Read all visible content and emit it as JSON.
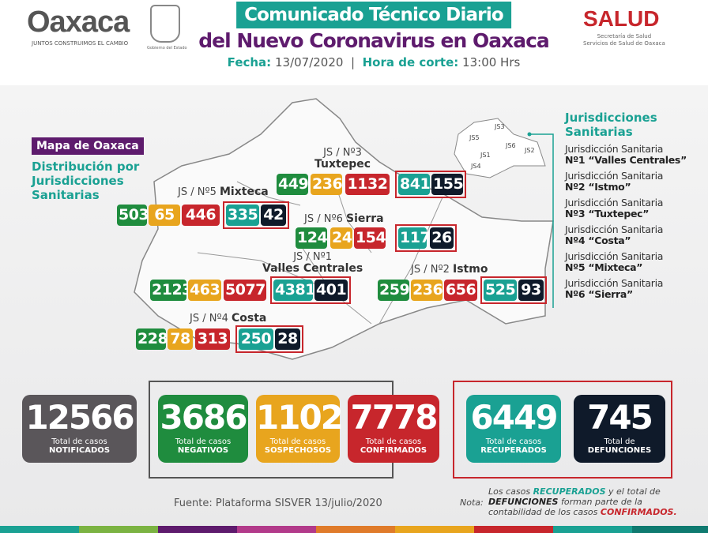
{
  "header": {
    "logo": "Oaxaca",
    "logo_tagline": "JUNTOS CONSTRUIMOS EL CAMBIO",
    "seal_caption": "Gobierno del Estado",
    "title_line1": "Comunicado Técnico Diario",
    "title_line2": "del Nuevo Coronavirus en Oaxaca",
    "fecha_label": "Fecha:",
    "fecha": "13/07/2020",
    "separator": "|",
    "hora_label": "Hora de corte:",
    "hora": "13:00 Hrs",
    "salud": "SALUD",
    "salud_sub1": "Secretaría de Salud",
    "salud_sub2": "Servicios de Salud de Oaxaca"
  },
  "map": {
    "title": "Mapa de Oaxaca",
    "subtitle": [
      "Distribución por",
      "Jurisdicciones",
      "Sanitarias"
    ],
    "mini_labels": [
      "JS3",
      "JS5",
      "JS6",
      "JS1",
      "JS2",
      "JS4"
    ],
    "clusters": [
      {
        "label": "JS / Nº5",
        "name": "Mixteca",
        "values": [
          503,
          65,
          446,
          335,
          42
        ]
      },
      {
        "label": "JS / Nº3",
        "name": "Tuxtepec",
        "values": [
          449,
          236,
          1132,
          841,
          155
        ]
      },
      {
        "label": "JS / Nº6",
        "name": "Sierra",
        "values": [
          124,
          24,
          154,
          117,
          26
        ]
      },
      {
        "label": "JS / Nº1",
        "name": "Valles Centrales",
        "values": [
          2123,
          463,
          5077,
          4381,
          401
        ]
      },
      {
        "label": "JS / Nº2",
        "name": "Istmo",
        "values": [
          259,
          236,
          656,
          525,
          93
        ]
      },
      {
        "label": "JS / Nº4",
        "name": "Costa",
        "values": [
          228,
          78,
          313,
          250,
          28
        ]
      }
    ]
  },
  "legend": {
    "title": [
      "Jurisdicciones",
      "Sanitarias"
    ],
    "items": [
      {
        "line1": "Jurisdicción Sanitaria",
        "line2": "Nº1 “Valles Centrales”"
      },
      {
        "line1": "Jurisdicción Sanitaria",
        "line2": "Nº2 “Istmo”"
      },
      {
        "line1": "Jurisdicción Sanitaria",
        "line2": "Nº3 “Tuxtepec”"
      },
      {
        "line1": "Jurisdicción Sanitaria",
        "line2": "Nº4 “Costa”"
      },
      {
        "line1": "Jurisdicción Sanitaria",
        "line2": "Nº5 “Mixteca”"
      },
      {
        "line1": "Jurisdicción Sanitaria",
        "line2": "Nº6 “Sierra”"
      }
    ]
  },
  "totals": [
    {
      "value": "12566",
      "l1": "Total de casos",
      "l2": "NOTIFICADOS",
      "color": "#5a565a"
    },
    {
      "value": "3686",
      "l1": "Total de casos",
      "l2": "NEGATIVOS",
      "color": "#1f8c3e"
    },
    {
      "value": "1102",
      "l1": "Total de casos",
      "l2": "SOSPECHOSOS",
      "color": "#e8a51e"
    },
    {
      "value": "7778",
      "l1": "Total de casos",
      "l2": "CONFIRMADOS",
      "color": "#c7262c"
    },
    {
      "value": "6449",
      "l1": "Total de casos",
      "l2": "RECUPERADOS",
      "color": "#1aa193"
    },
    {
      "value": "745",
      "l1": "Total de",
      "l2": "DEFUNCIONES",
      "color": "#0f1a2a"
    }
  ],
  "footer": {
    "source": "Fuente: Plataforma SISVER 13/julio/2020",
    "nota_label": "Nota:",
    "n1": "Los casos ",
    "n2": "RECUPERADOS",
    "n3": " y el total de",
    "n4": "DEFUNCIONES",
    "n5": " forman parte de la",
    "n6": "contabilidad de los casos ",
    "n7": "CONFIRMADOS."
  },
  "colors": {
    "teal": "#1aa193",
    "purple": "#5e1b6d",
    "red": "#c7262c",
    "green": "#1f8c3e",
    "yellow": "#e8a51e",
    "navy": "#0f1a2a"
  }
}
